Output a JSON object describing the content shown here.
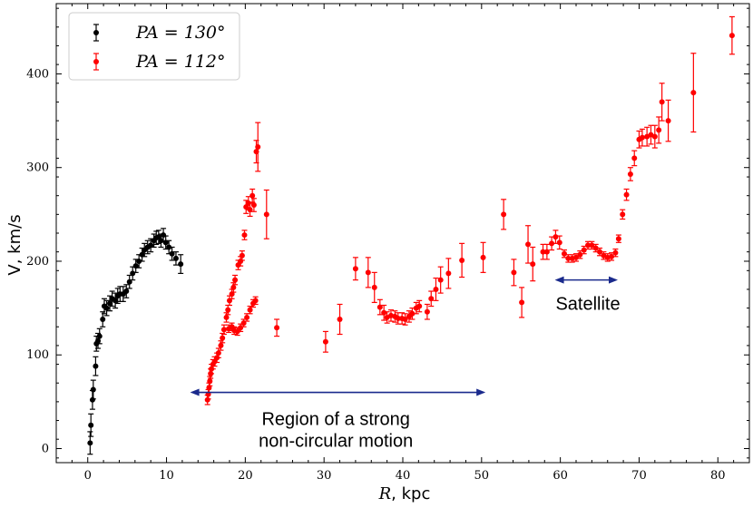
{
  "chart_data": {
    "type": "scatter",
    "xlabel_math": "R",
    "xlabel_unit": ", kpc",
    "ylabel": "V, km/s",
    "xlim": [
      -4,
      84
    ],
    "ylim": [
      -15,
      475
    ],
    "xticks": [
      0,
      10,
      20,
      30,
      40,
      50,
      60,
      70,
      80
    ],
    "yticks": [
      0,
      100,
      200,
      300,
      400
    ],
    "grid": false,
    "legend_position": "top-left",
    "series": [
      {
        "name": "PA = 130°",
        "color": "#000000",
        "points": [
          [
            0.3,
            6,
            12
          ],
          [
            0.4,
            25,
            12
          ],
          [
            0.6,
            52,
            10
          ],
          [
            0.7,
            63,
            10
          ],
          [
            1.0,
            88,
            10
          ],
          [
            1.1,
            112,
            8
          ],
          [
            1.3,
            115,
            8
          ],
          [
            1.5,
            120,
            8
          ],
          [
            1.9,
            138,
            8
          ],
          [
            2.1,
            152,
            8
          ],
          [
            2.4,
            150,
            8
          ],
          [
            2.8,
            155,
            8
          ],
          [
            3.1,
            160,
            8
          ],
          [
            3.5,
            158,
            8
          ],
          [
            3.8,
            163,
            8
          ],
          [
            4.1,
            165,
            8
          ],
          [
            4.5,
            165,
            8
          ],
          [
            4.9,
            168,
            7
          ],
          [
            5.3,
            178,
            7
          ],
          [
            5.7,
            187,
            7
          ],
          [
            6.1,
            195,
            7
          ],
          [
            6.5,
            200,
            7
          ],
          [
            6.9,
            207,
            7
          ],
          [
            7.2,
            212,
            7
          ],
          [
            7.6,
            215,
            7
          ],
          [
            8.0,
            217,
            7
          ],
          [
            8.4,
            222,
            7
          ],
          [
            8.7,
            225,
            7
          ],
          [
            9.0,
            226,
            7
          ],
          [
            9.3,
            222,
            7
          ],
          [
            9.6,
            228,
            7
          ],
          [
            9.9,
            220,
            7
          ],
          [
            10.3,
            215,
            7
          ],
          [
            10.7,
            208,
            7
          ],
          [
            11.2,
            203,
            7
          ],
          [
            11.8,
            197,
            10
          ]
        ]
      },
      {
        "name": "PA = 112°",
        "color": "#ff0000",
        "points": [
          [
            15.2,
            52,
            5
          ],
          [
            15.3,
            58,
            5
          ],
          [
            15.4,
            65,
            5
          ],
          [
            15.5,
            72,
            5
          ],
          [
            15.6,
            80,
            5
          ],
          [
            15.7,
            85,
            5
          ],
          [
            15.9,
            90,
            5
          ],
          [
            16.1,
            93,
            5
          ],
          [
            16.4,
            97,
            5
          ],
          [
            16.6,
            102,
            5
          ],
          [
            16.9,
            110,
            5
          ],
          [
            17.1,
            118,
            5
          ],
          [
            17.3,
            127,
            5
          ],
          [
            17.6,
            140,
            5
          ],
          [
            17.8,
            148,
            5
          ],
          [
            18.0,
            158,
            5
          ],
          [
            18.3,
            165,
            5
          ],
          [
            18.5,
            172,
            5
          ],
          [
            18.7,
            180,
            5
          ],
          [
            19.1,
            196,
            5
          ],
          [
            19.4,
            200,
            5
          ],
          [
            19.6,
            206,
            5
          ],
          [
            19.9,
            228,
            5
          ],
          [
            20.1,
            258,
            7
          ],
          [
            20.4,
            262,
            7
          ],
          [
            20.6,
            255,
            7
          ],
          [
            20.9,
            270,
            7
          ],
          [
            21.1,
            260,
            7
          ],
          [
            21.4,
            317,
            12
          ],
          [
            21.6,
            322,
            26
          ],
          [
            22.7,
            250,
            26
          ],
          [
            17.9,
            128,
            4
          ],
          [
            18.3,
            130,
            4
          ],
          [
            18.6,
            126,
            4
          ],
          [
            19.0,
            125,
            4
          ],
          [
            19.4,
            129,
            4
          ],
          [
            19.8,
            134,
            4
          ],
          [
            20.2,
            140,
            4
          ],
          [
            20.6,
            148,
            4
          ],
          [
            21.0,
            155,
            4
          ],
          [
            21.3,
            158,
            4
          ],
          [
            24.0,
            129,
            9
          ],
          [
            30.2,
            114,
            11
          ],
          [
            32.0,
            138,
            16
          ],
          [
            34.0,
            192,
            12
          ],
          [
            35.6,
            188,
            16
          ],
          [
            36.4,
            172,
            16
          ],
          [
            37.1,
            151,
            8
          ],
          [
            37.6,
            145,
            8
          ],
          [
            38.0,
            140,
            6
          ],
          [
            38.5,
            142,
            6
          ],
          [
            39.0,
            141,
            6
          ],
          [
            39.4,
            139,
            6
          ],
          [
            39.9,
            139,
            6
          ],
          [
            40.3,
            138,
            6
          ],
          [
            40.8,
            141,
            6
          ],
          [
            41.2,
            144,
            6
          ],
          [
            41.7,
            150,
            6
          ],
          [
            42.1,
            152,
            6
          ],
          [
            43.1,
            146,
            8
          ],
          [
            43.6,
            160,
            8
          ],
          [
            44.2,
            170,
            12
          ],
          [
            44.8,
            180,
            14
          ],
          [
            45.8,
            187,
            16
          ],
          [
            47.5,
            201,
            18
          ],
          [
            50.2,
            204,
            16
          ],
          [
            52.8,
            250,
            16
          ],
          [
            54.1,
            188,
            14
          ],
          [
            55.1,
            156,
            16
          ],
          [
            55.9,
            218,
            20
          ],
          [
            56.5,
            197,
            18
          ],
          [
            57.8,
            210,
            8
          ],
          [
            58.3,
            210,
            8
          ],
          [
            58.9,
            219,
            7
          ],
          [
            59.4,
            226,
            7
          ],
          [
            59.9,
            220,
            7
          ],
          [
            60.5,
            208,
            4
          ],
          [
            61.0,
            203,
            4
          ],
          [
            61.5,
            203,
            4
          ],
          [
            62.0,
            204,
            4
          ],
          [
            62.5,
            207,
            4
          ],
          [
            63.0,
            212,
            4
          ],
          [
            63.5,
            217,
            4
          ],
          [
            64.0,
            217,
            4
          ],
          [
            64.5,
            214,
            4
          ],
          [
            65.0,
            210,
            4
          ],
          [
            65.5,
            206,
            4
          ],
          [
            66.0,
            204,
            4
          ],
          [
            66.5,
            205,
            4
          ],
          [
            67.0,
            209,
            4
          ],
          [
            67.4,
            224,
            4
          ],
          [
            67.9,
            250,
            5
          ],
          [
            68.4,
            271,
            6
          ],
          [
            68.9,
            293,
            7
          ],
          [
            69.4,
            310,
            8
          ],
          [
            70.0,
            330,
            9
          ],
          [
            70.4,
            332,
            9
          ],
          [
            71.0,
            333,
            10
          ],
          [
            71.5,
            335,
            10
          ],
          [
            72.0,
            333,
            12
          ],
          [
            72.5,
            340,
            14
          ],
          [
            72.9,
            370,
            20
          ],
          [
            73.7,
            350,
            22
          ],
          [
            76.9,
            380,
            42
          ],
          [
            81.8,
            441,
            20
          ]
        ]
      }
    ],
    "annotations": [
      {
        "lines": [
          "Region of a strong",
          "non-circular motion"
        ],
        "arrow_from_x": 13,
        "arrow_to_x": 50.5,
        "arrow_y": 60,
        "text_x": 31.5,
        "text_y": 25
      },
      {
        "lines": [
          "Satellite"
        ],
        "arrow_from_x": 59.3,
        "arrow_to_x": 67.3,
        "arrow_y": 180,
        "text_x": 63.5,
        "text_y": 148
      }
    ],
    "arrow_color": "#1a2a8c"
  }
}
